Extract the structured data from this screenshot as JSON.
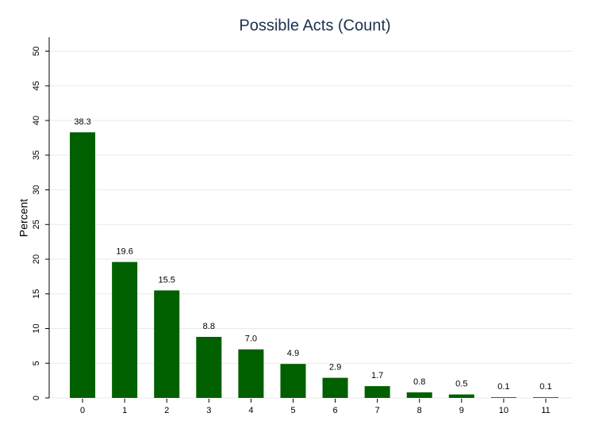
{
  "chart_data": {
    "type": "bar",
    "title": "Possible Acts (Count)",
    "ylabel": "Percent",
    "categories": [
      "0",
      "1",
      "2",
      "3",
      "4",
      "5",
      "6",
      "7",
      "8",
      "9",
      "10",
      "11"
    ],
    "values": [
      38.3,
      19.6,
      15.5,
      8.8,
      7.0,
      4.9,
      2.9,
      1.7,
      0.8,
      0.5,
      0.1,
      0.1
    ],
    "value_labels": [
      "38.3",
      "19.6",
      "15.5",
      "8.8",
      "7.0",
      "4.9",
      "2.9",
      "1.7",
      "0.8",
      "0.5",
      "0.1",
      "0.1"
    ],
    "color": "#006000",
    "ylim": [
      0,
      52
    ],
    "yticks": [
      0,
      5,
      10,
      15,
      20,
      25,
      30,
      35,
      40,
      45,
      50
    ],
    "grid": true
  }
}
